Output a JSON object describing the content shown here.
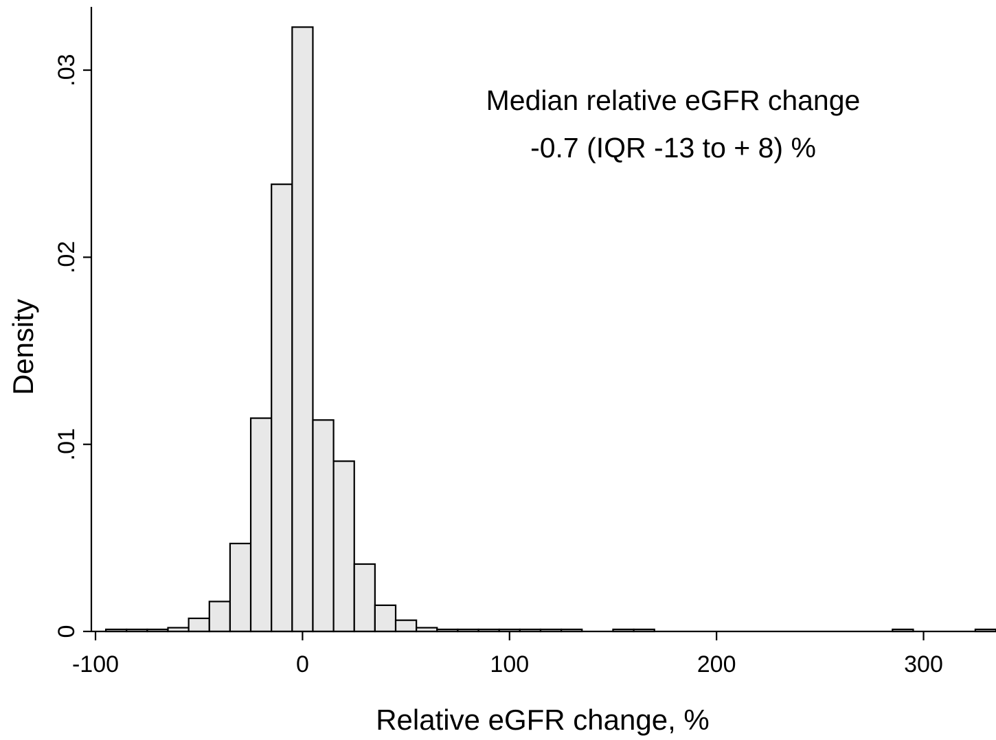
{
  "chart_data": {
    "type": "bar",
    "subtype": "histogram",
    "xlabel": "Relative eGFR change, %",
    "ylabel": "Density",
    "xlim": [
      -102,
      335
    ],
    "ylim": [
      0,
      0.0325
    ],
    "x_ticks": [
      -100,
      0,
      100,
      200,
      300
    ],
    "x_tick_labels": [
      "-100",
      "0",
      "100",
      "200",
      "300"
    ],
    "y_ticks": [
      0,
      0.01,
      0.02,
      0.03
    ],
    "y_tick_labels": [
      "0",
      ".01",
      ".02",
      ".03"
    ],
    "grid": false,
    "bar_color": "#e8e8e8",
    "bin_width": 10,
    "bins": [
      {
        "start": -95,
        "end": -85,
        "density": 5e-05
      },
      {
        "start": -85,
        "end": -75,
        "density": 5e-05
      },
      {
        "start": -75,
        "end": -65,
        "density": 8e-05
      },
      {
        "start": -65,
        "end": -55,
        "density": 0.0002
      },
      {
        "start": -55,
        "end": -45,
        "density": 0.0007
      },
      {
        "start": -45,
        "end": -35,
        "density": 0.0016
      },
      {
        "start": -35,
        "end": -25,
        "density": 0.0047
      },
      {
        "start": -25,
        "end": -15,
        "density": 0.0114
      },
      {
        "start": -15,
        "end": -5,
        "density": 0.0239
      },
      {
        "start": -5,
        "end": 5,
        "density": 0.0323
      },
      {
        "start": 5,
        "end": 15,
        "density": 0.0113
      },
      {
        "start": 15,
        "end": 25,
        "density": 0.0091
      },
      {
        "start": 25,
        "end": 35,
        "density": 0.0036
      },
      {
        "start": 35,
        "end": 45,
        "density": 0.0014
      },
      {
        "start": 45,
        "end": 55,
        "density": 0.0006
      },
      {
        "start": 55,
        "end": 65,
        "density": 0.0002
      },
      {
        "start": 65,
        "end": 75,
        "density": 5e-05
      },
      {
        "start": 75,
        "end": 85,
        "density": 5e-05
      },
      {
        "start": 85,
        "end": 95,
        "density": 5e-05
      },
      {
        "start": 95,
        "end": 105,
        "density": 5e-05
      },
      {
        "start": 105,
        "end": 115,
        "density": 5e-05
      },
      {
        "start": 115,
        "end": 125,
        "density": 5e-05
      },
      {
        "start": 125,
        "end": 135,
        "density": 5e-05
      },
      {
        "start": 150,
        "end": 160,
        "density": 5e-05
      },
      {
        "start": 160,
        "end": 170,
        "density": 5e-05
      },
      {
        "start": 285,
        "end": 295,
        "density": 5e-05
      },
      {
        "start": 325,
        "end": 335,
        "density": 5e-05
      }
    ],
    "annotations": [
      "Median relative eGFR change",
      "-0.7 (IQR -13 to + 8) %"
    ]
  }
}
